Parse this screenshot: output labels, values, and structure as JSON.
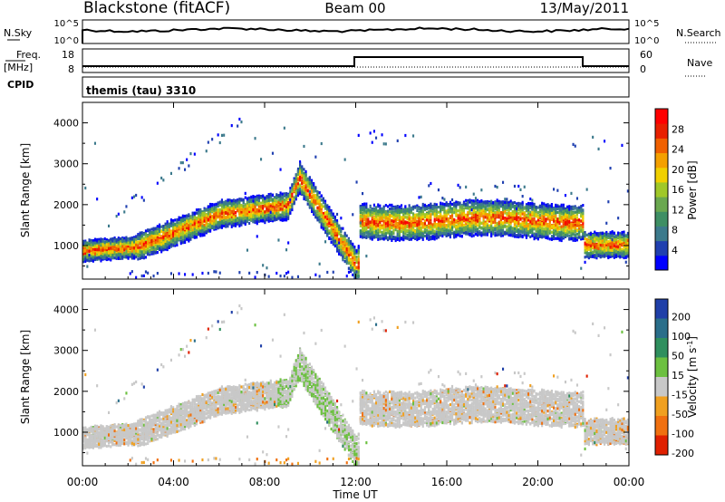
{
  "header": {
    "station": "Blackstone (fitACF)",
    "beam": "Beam 00",
    "date": "13/May/2011"
  },
  "strips": {
    "nsky_label": "N.Sky",
    "nsky_tick_top": "10^5",
    "nsky_tick_bottom": "10^0",
    "nsearch_label": "N.Search",
    "freq_label_1": "Freq.",
    "freq_label_2": "[MHz]",
    "freq_tick_top": "18",
    "freq_tick_bottom": "8",
    "nave_label": "Nave",
    "nave_tick_top": "60",
    "nave_tick_bottom": "0",
    "cpid_label": "CPID",
    "cpid_value": "themis (tau) 3310"
  },
  "chart_data": [
    {
      "type": "heatmap",
      "name": "power",
      "ylabel": "Slant Range [km]",
      "ylim": [
        180,
        4500
      ],
      "yticks": [
        "1000",
        "2000",
        "3000",
        "4000"
      ],
      "colorbar_label": "Power [dB]",
      "colorbar_ticks": [
        "4",
        "8",
        "12",
        "16",
        "20",
        "24",
        "28"
      ],
      "colors": [
        "#0000ff",
        "#2040b0",
        "#3c7a8c",
        "#3e8f64",
        "#6aa84f",
        "#a0c828",
        "#f0d000",
        "#f4a000",
        "#f06000",
        "#e82000",
        "#ff0000"
      ]
    },
    {
      "type": "heatmap",
      "name": "velocity",
      "ylabel": "Slant Range [km]",
      "ylim": [
        180,
        4500
      ],
      "yticks": [
        "1000",
        "2000",
        "3000",
        "4000"
      ],
      "colorbar_label": "Velocity [m s^-1]",
      "colorbar_ticks": [
        "200",
        "100",
        "50",
        "15",
        "-15",
        "-50",
        "-100",
        "-200"
      ],
      "colors": [
        "#1f3fa8",
        "#2a6e8a",
        "#2f8f5e",
        "#6cc040",
        "#c8c8c8",
        "#f0a020",
        "#f07010",
        "#e02000"
      ],
      "xlabel": "Time UT",
      "xticks": [
        "00:00",
        "04:00",
        "08:00",
        "12:00",
        "16:00",
        "20:00",
        "00:00"
      ]
    }
  ]
}
